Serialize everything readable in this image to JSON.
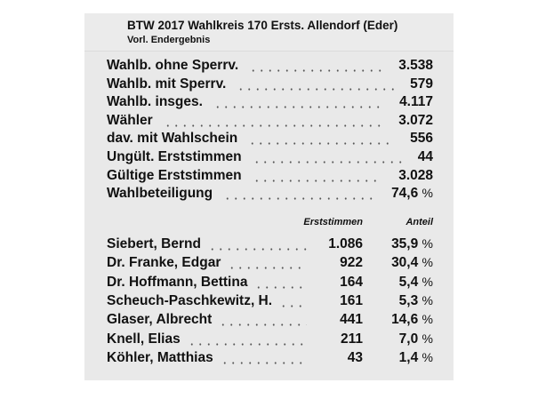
{
  "header": {
    "title": "BTW 2017 Wahlkreis 170 Ersts. Allendorf (Eder)",
    "subtitle": "Vorl. Endergebnis"
  },
  "stats": [
    {
      "label": "Wahlb. ohne Sperrv.",
      "value": "3.538"
    },
    {
      "label": "Wahlb. mit Sperrv.",
      "value": "579"
    },
    {
      "label": "Wahlb. insges.",
      "value": "4.117"
    },
    {
      "label": "Wähler",
      "value": "3.072"
    },
    {
      "label": "dav. mit Wahlschein",
      "value": "556"
    },
    {
      "label": "Ungült. Erststimmen",
      "value": "44"
    },
    {
      "label": "Gültige Erststimmen",
      "value": "3.028"
    },
    {
      "label": "Wahlbeteiligung",
      "value": "74,6",
      "unit": "%"
    }
  ],
  "columns": {
    "votes": "Erststimmen",
    "share": "Anteil"
  },
  "candidates": [
    {
      "name": "Siebert, Bernd",
      "votes": "1.086",
      "share": "35,9",
      "unit": "%"
    },
    {
      "name": "Dr. Franke, Edgar",
      "votes": "922",
      "share": "30,4",
      "unit": "%"
    },
    {
      "name": "Dr. Hoffmann, Bettina",
      "votes": "164",
      "share": "5,4",
      "unit": "%"
    },
    {
      "name": "Scheuch-Paschkewitz, H.",
      "votes": "161",
      "share": "5,3",
      "unit": "%"
    },
    {
      "name": "Glaser, Albrecht",
      "votes": "441",
      "share": "14,6",
      "unit": "%"
    },
    {
      "name": "Knell, Elias",
      "votes": "211",
      "share": "7,0",
      "unit": "%"
    },
    {
      "name": "Köhler, Matthias",
      "votes": "43",
      "share": "1,4",
      "unit": "%"
    }
  ]
}
